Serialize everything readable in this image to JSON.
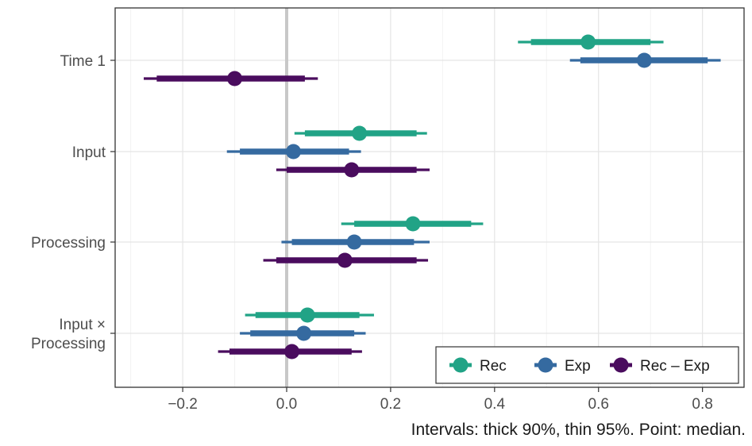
{
  "chart_data": {
    "type": "interval",
    "categories": [
      "Time 1",
      "Input",
      "Processing",
      "Input ×\nProcessing"
    ],
    "xlim": [
      -0.33,
      0.88
    ],
    "x_ticks": [
      -0.2,
      0.0,
      0.2,
      0.4,
      0.6,
      0.8
    ],
    "x_tick_labels": [
      "−0.2",
      "0.0",
      "0.2",
      "0.4",
      "0.6",
      "0.8"
    ],
    "reference_line_x": 0.0,
    "grid": true,
    "legend_position": "bottom-right",
    "caption": "Intervals: thick 90%, thin 95%. Point: median.",
    "series": [
      {
        "name": "Rec",
        "color": "#21a386",
        "intervals": [
          {
            "category": "Time 1",
            "median": 0.58,
            "lo90": 0.47,
            "hi90": 0.7,
            "lo95": 0.445,
            "hi95": 0.725
          },
          {
            "category": "Input",
            "median": 0.14,
            "lo90": 0.035,
            "hi90": 0.25,
            "lo95": 0.015,
            "hi95": 0.27
          },
          {
            "category": "Processing",
            "median": 0.243,
            "lo90": 0.13,
            "hi90": 0.355,
            "lo95": 0.105,
            "hi95": 0.378
          },
          {
            "category": "Input ×\nProcessing",
            "median": 0.04,
            "lo90": -0.06,
            "hi90": 0.14,
            "lo95": -0.08,
            "hi95": 0.168
          }
        ]
      },
      {
        "name": "Exp",
        "color": "#356aa0",
        "intervals": [
          {
            "category": "Time 1",
            "median": 0.688,
            "lo90": 0.565,
            "hi90": 0.81,
            "lo95": 0.545,
            "hi95": 0.835
          },
          {
            "category": "Input",
            "median": 0.013,
            "lo90": -0.09,
            "hi90": 0.12,
            "lo95": -0.115,
            "hi95": 0.143
          },
          {
            "category": "Processing",
            "median": 0.13,
            "lo90": 0.01,
            "hi90": 0.245,
            "lo95": -0.01,
            "hi95": 0.275
          },
          {
            "category": "Input ×\nProcessing",
            "median": 0.033,
            "lo90": -0.07,
            "hi90": 0.13,
            "lo95": -0.09,
            "hi95": 0.152
          }
        ]
      },
      {
        "name": "Rec – Exp",
        "color": "#4a0c5e",
        "intervals": [
          {
            "category": "Time 1",
            "median": -0.1,
            "lo90": -0.25,
            "hi90": 0.035,
            "lo95": -0.275,
            "hi95": 0.06
          },
          {
            "category": "Input",
            "median": 0.125,
            "lo90": 0.0,
            "hi90": 0.25,
            "lo95": -0.02,
            "hi95": 0.275
          },
          {
            "category": "Processing",
            "median": 0.112,
            "lo90": -0.02,
            "hi90": 0.25,
            "lo95": -0.045,
            "hi95": 0.272
          },
          {
            "category": "Input ×\nProcessing",
            "median": 0.01,
            "lo90": -0.11,
            "hi90": 0.125,
            "lo95": -0.132,
            "hi95": 0.145
          }
        ]
      }
    ]
  }
}
